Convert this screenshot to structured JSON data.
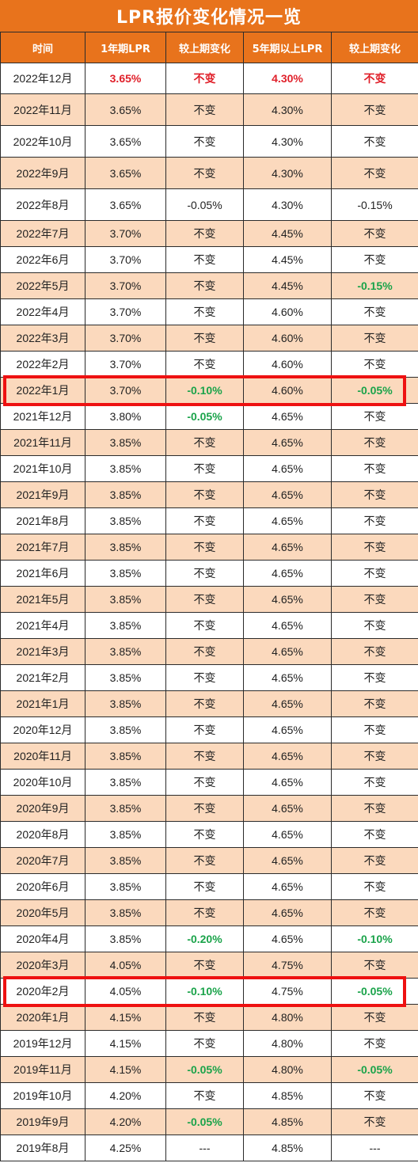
{
  "title": "LPR报价变化情况一览",
  "headers": [
    "时间",
    "1年期LPR",
    "较上期变化",
    "5年期以上LPR",
    "较上期变化"
  ],
  "rows": [
    {
      "date": "2022年12月",
      "lpr1y": "3.65%",
      "chg1y": "不变",
      "lpr5y": "4.30%",
      "chg5y": "不变"
    },
    {
      "date": "2022年11月",
      "lpr1y": "3.65%",
      "chg1y": "不变",
      "lpr5y": "4.30%",
      "chg5y": "不变"
    },
    {
      "date": "2022年10月",
      "lpr1y": "3.65%",
      "chg1y": "不变",
      "lpr5y": "4.30%",
      "chg5y": "不变"
    },
    {
      "date": "2022年9月",
      "lpr1y": "3.65%",
      "chg1y": "不变",
      "lpr5y": "4.30%",
      "chg5y": "不变"
    },
    {
      "date": "2022年8月",
      "lpr1y": "3.65%",
      "chg1y": "-0.05%",
      "lpr5y": "4.30%",
      "chg5y": "-0.15%"
    },
    {
      "date": "2022年7月",
      "lpr1y": "3.70%",
      "chg1y": "不变",
      "lpr5y": "4.45%",
      "chg5y": "不变"
    },
    {
      "date": "2022年6月",
      "lpr1y": "3.70%",
      "chg1y": "不变",
      "lpr5y": "4.45%",
      "chg5y": "不变"
    },
    {
      "date": "2022年5月",
      "lpr1y": "3.70%",
      "chg1y": "不变",
      "lpr5y": "4.45%",
      "chg5y": "-0.15%"
    },
    {
      "date": "2022年4月",
      "lpr1y": "3.70%",
      "chg1y": "不变",
      "lpr5y": "4.60%",
      "chg5y": "不变"
    },
    {
      "date": "2022年3月",
      "lpr1y": "3.70%",
      "chg1y": "不变",
      "lpr5y": "4.60%",
      "chg5y": "不变"
    },
    {
      "date": "2022年2月",
      "lpr1y": "3.70%",
      "chg1y": "不变",
      "lpr5y": "4.60%",
      "chg5y": "不变"
    },
    {
      "date": "2022年1月",
      "lpr1y": "3.70%",
      "chg1y": "-0.10%",
      "lpr5y": "4.60%",
      "chg5y": "-0.05%"
    },
    {
      "date": "2021年12月",
      "lpr1y": "3.80%",
      "chg1y": "-0.05%",
      "lpr5y": "4.65%",
      "chg5y": "不变"
    },
    {
      "date": "2021年11月",
      "lpr1y": "3.85%",
      "chg1y": "不变",
      "lpr5y": "4.65%",
      "chg5y": "不变"
    },
    {
      "date": "2021年10月",
      "lpr1y": "3.85%",
      "chg1y": "不变",
      "lpr5y": "4.65%",
      "chg5y": "不变"
    },
    {
      "date": "2021年9月",
      "lpr1y": "3.85%",
      "chg1y": "不变",
      "lpr5y": "4.65%",
      "chg5y": "不变"
    },
    {
      "date": "2021年8月",
      "lpr1y": "3.85%",
      "chg1y": "不变",
      "lpr5y": "4.65%",
      "chg5y": "不变"
    },
    {
      "date": "2021年7月",
      "lpr1y": "3.85%",
      "chg1y": "不变",
      "lpr5y": "4.65%",
      "chg5y": "不变"
    },
    {
      "date": "2021年6月",
      "lpr1y": "3.85%",
      "chg1y": "不变",
      "lpr5y": "4.65%",
      "chg5y": "不变"
    },
    {
      "date": "2021年5月",
      "lpr1y": "3.85%",
      "chg1y": "不变",
      "lpr5y": "4.65%",
      "chg5y": "不变"
    },
    {
      "date": "2021年4月",
      "lpr1y": "3.85%",
      "chg1y": "不变",
      "lpr5y": "4.65%",
      "chg5y": "不变"
    },
    {
      "date": "2021年3月",
      "lpr1y": "3.85%",
      "chg1y": "不变",
      "lpr5y": "4.65%",
      "chg5y": "不变"
    },
    {
      "date": "2021年2月",
      "lpr1y": "3.85%",
      "chg1y": "不变",
      "lpr5y": "4.65%",
      "chg5y": "不变"
    },
    {
      "date": "2021年1月",
      "lpr1y": "3.85%",
      "chg1y": "不变",
      "lpr5y": "4.65%",
      "chg5y": "不变"
    },
    {
      "date": "2020年12月",
      "lpr1y": "3.85%",
      "chg1y": "不变",
      "lpr5y": "4.65%",
      "chg5y": "不变"
    },
    {
      "date": "2020年11月",
      "lpr1y": "3.85%",
      "chg1y": "不变",
      "lpr5y": "4.65%",
      "chg5y": "不变"
    },
    {
      "date": "2020年10月",
      "lpr1y": "3.85%",
      "chg1y": "不变",
      "lpr5y": "4.65%",
      "chg5y": "不变"
    },
    {
      "date": "2020年9月",
      "lpr1y": "3.85%",
      "chg1y": "不变",
      "lpr5y": "4.65%",
      "chg5y": "不变"
    },
    {
      "date": "2020年8月",
      "lpr1y": "3.85%",
      "chg1y": "不变",
      "lpr5y": "4.65%",
      "chg5y": "不变"
    },
    {
      "date": "2020年7月",
      "lpr1y": "3.85%",
      "chg1y": "不变",
      "lpr5y": "4.65%",
      "chg5y": "不变"
    },
    {
      "date": "2020年6月",
      "lpr1y": "3.85%",
      "chg1y": "不变",
      "lpr5y": "4.65%",
      "chg5y": "不变"
    },
    {
      "date": "2020年5月",
      "lpr1y": "3.85%",
      "chg1y": "不变",
      "lpr5y": "4.65%",
      "chg5y": "不变"
    },
    {
      "date": "2020年4月",
      "lpr1y": "3.85%",
      "chg1y": "-0.20%",
      "lpr5y": "4.65%",
      "chg5y": "-0.10%"
    },
    {
      "date": "2020年3月",
      "lpr1y": "4.05%",
      "chg1y": "不变",
      "lpr5y": "4.75%",
      "chg5y": "不变"
    },
    {
      "date": "2020年2月",
      "lpr1y": "4.05%",
      "chg1y": "-0.10%",
      "lpr5y": "4.75%",
      "chg5y": "-0.05%"
    },
    {
      "date": "2020年1月",
      "lpr1y": "4.15%",
      "chg1y": "不变",
      "lpr5y": "4.80%",
      "chg5y": "不变"
    },
    {
      "date": "2019年12月",
      "lpr1y": "4.15%",
      "chg1y": "不变",
      "lpr5y": "4.80%",
      "chg5y": "不变"
    },
    {
      "date": "2019年11月",
      "lpr1y": "4.15%",
      "chg1y": "-0.05%",
      "lpr5y": "4.80%",
      "chg5y": "-0.05%"
    },
    {
      "date": "2019年10月",
      "lpr1y": "4.20%",
      "chg1y": "不变",
      "lpr5y": "4.85%",
      "chg5y": "不变"
    },
    {
      "date": "2019年9月",
      "lpr1y": "4.20%",
      "chg1y": "-0.05%",
      "lpr5y": "4.85%",
      "chg5y": "不变"
    },
    {
      "date": "2019年8月",
      "lpr1y": "4.25%",
      "chg1y": "---",
      "lpr5y": "4.85%",
      "chg5y": "---"
    }
  ],
  "colors": {
    "header_bg": "#e8731c",
    "stripe": "#fbd9bd",
    "highlight_red": "#e0202a",
    "decrease_green": "#1aa34a",
    "box_outline": "#ee1111"
  },
  "highlighted_rows": [
    "2022年1月",
    "2020年2月"
  ]
}
